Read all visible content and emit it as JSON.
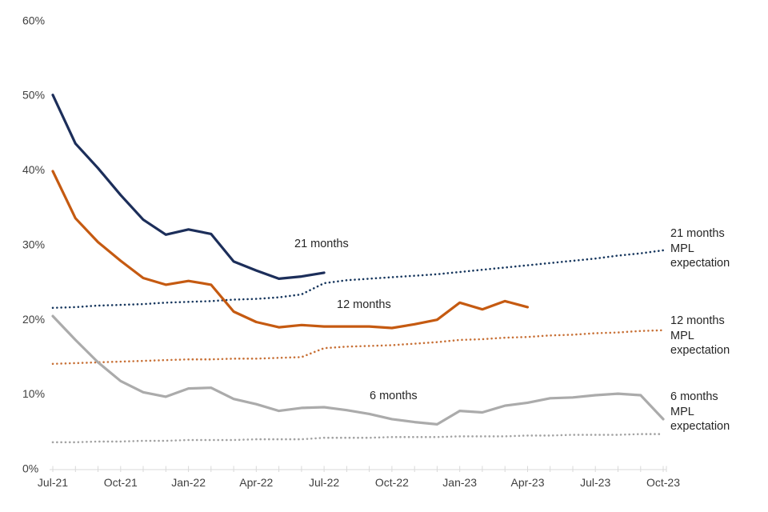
{
  "figure": {
    "background": "#FFFFFF"
  },
  "axis": {
    "axis_color": "#D9D9D9",
    "label_color": "#404040",
    "y_labels": [
      "0%",
      "10%",
      "20%",
      "30%",
      "40%",
      "50%",
      "60%"
    ],
    "x_labels": [
      "Jul-21",
      "Oct-21",
      "Jan-22",
      "Apr-22",
      "Jul-22",
      "Oct-22",
      "Jan-23",
      "Apr-23",
      "Jul-23",
      "Oct-23"
    ]
  },
  "annotations": {
    "label_21m": "21 months",
    "label_12m": "12 months",
    "label_6m": "6 months",
    "mpl_21m_lines": [
      "21 months",
      "MPL",
      "expectation"
    ],
    "mpl_12m_lines": [
      "12 months",
      "MPL",
      "expectation"
    ],
    "mpl_6m_lines": [
      "6 months",
      "MPL",
      "expectation"
    ]
  },
  "chart_data": {
    "type": "line",
    "title": "",
    "xlabel": "",
    "ylabel": "",
    "ylim": [
      0,
      60
    ],
    "y_tick_step": 10,
    "y_tick_format": "percent",
    "grid": false,
    "legend_position": "inline-right-annotations",
    "x": [
      "Jul-21",
      "Aug-21",
      "Sep-21",
      "Oct-21",
      "Nov-21",
      "Dec-21",
      "Jan-22",
      "Feb-22",
      "Mar-22",
      "Apr-22",
      "May-22",
      "Jun-22",
      "Jul-22",
      "Aug-22",
      "Sep-22",
      "Oct-22",
      "Nov-22",
      "Dec-22",
      "Jan-23",
      "Feb-23",
      "Mar-23",
      "Apr-23",
      "May-23",
      "Jun-23",
      "Jul-23",
      "Aug-23",
      "Sep-23",
      "Oct-23"
    ],
    "x_tick_labels": [
      "Jul-21",
      "Oct-21",
      "Jan-22",
      "Apr-22",
      "Jul-22",
      "Oct-22",
      "Jan-23",
      "Apr-23",
      "Jul-23",
      "Oct-23"
    ],
    "series": [
      {
        "name": "21 months",
        "line_style": "solid",
        "color": "#1C2E5A",
        "values": [
          50,
          43.5,
          40.2,
          36.6,
          33.3,
          31.3,
          32.0,
          31.4,
          27.7,
          26.5,
          25.4,
          25.7,
          26.2,
          null,
          null,
          null,
          null,
          null,
          null,
          null,
          null,
          null,
          null,
          null,
          null,
          null,
          null,
          null
        ]
      },
      {
        "name": "12 months",
        "line_style": "solid",
        "color": "#C55A11",
        "values": [
          39.8,
          33.5,
          30.3,
          27.8,
          25.5,
          24.6,
          25.1,
          24.6,
          21.0,
          19.6,
          18.9,
          19.2,
          19.0,
          19.0,
          19.0,
          18.8,
          19.3,
          19.9,
          22.2,
          21.3,
          22.4,
          21.6,
          null,
          null,
          null,
          null,
          null,
          null
        ]
      },
      {
        "name": "6 months",
        "line_style": "solid",
        "color": "#ABABAB",
        "values": [
          20.4,
          17.2,
          14.2,
          11.7,
          10.2,
          9.6,
          10.7,
          10.8,
          9.3,
          8.6,
          7.7,
          8.1,
          8.2,
          7.8,
          7.3,
          6.6,
          6.2,
          5.9,
          7.7,
          7.5,
          8.4,
          8.8,
          9.4,
          9.5,
          9.8,
          10.0,
          9.8,
          6.6
        ]
      },
      {
        "name": "21 months MPL expectation",
        "line_style": "dotted",
        "color": "#17375E",
        "values": [
          21.5,
          21.6,
          21.8,
          21.9,
          22.0,
          22.2,
          22.3,
          22.4,
          22.6,
          22.7,
          22.9,
          23.3,
          24.8,
          25.2,
          25.4,
          25.6,
          25.8,
          26.0,
          26.3,
          26.6,
          26.9,
          27.2,
          27.5,
          27.8,
          28.1,
          28.5,
          28.8,
          29.2
        ]
      },
      {
        "name": "12 months MPL expectation",
        "line_style": "dotted",
        "color": "#C87137",
        "values": [
          14.0,
          14.1,
          14.2,
          14.3,
          14.4,
          14.5,
          14.6,
          14.6,
          14.7,
          14.7,
          14.8,
          14.9,
          16.1,
          16.3,
          16.4,
          16.5,
          16.7,
          16.9,
          17.2,
          17.3,
          17.5,
          17.6,
          17.8,
          17.9,
          18.1,
          18.2,
          18.4,
          18.5
        ]
      },
      {
        "name": "6 months MPL expectation",
        "line_style": "dotted",
        "color": "#A3A3A3",
        "values": [
          3.5,
          3.5,
          3.6,
          3.6,
          3.7,
          3.7,
          3.8,
          3.8,
          3.8,
          3.9,
          3.9,
          3.9,
          4.1,
          4.1,
          4.1,
          4.2,
          4.2,
          4.2,
          4.3,
          4.3,
          4.3,
          4.4,
          4.4,
          4.5,
          4.5,
          4.5,
          4.6,
          4.6
        ]
      }
    ]
  }
}
